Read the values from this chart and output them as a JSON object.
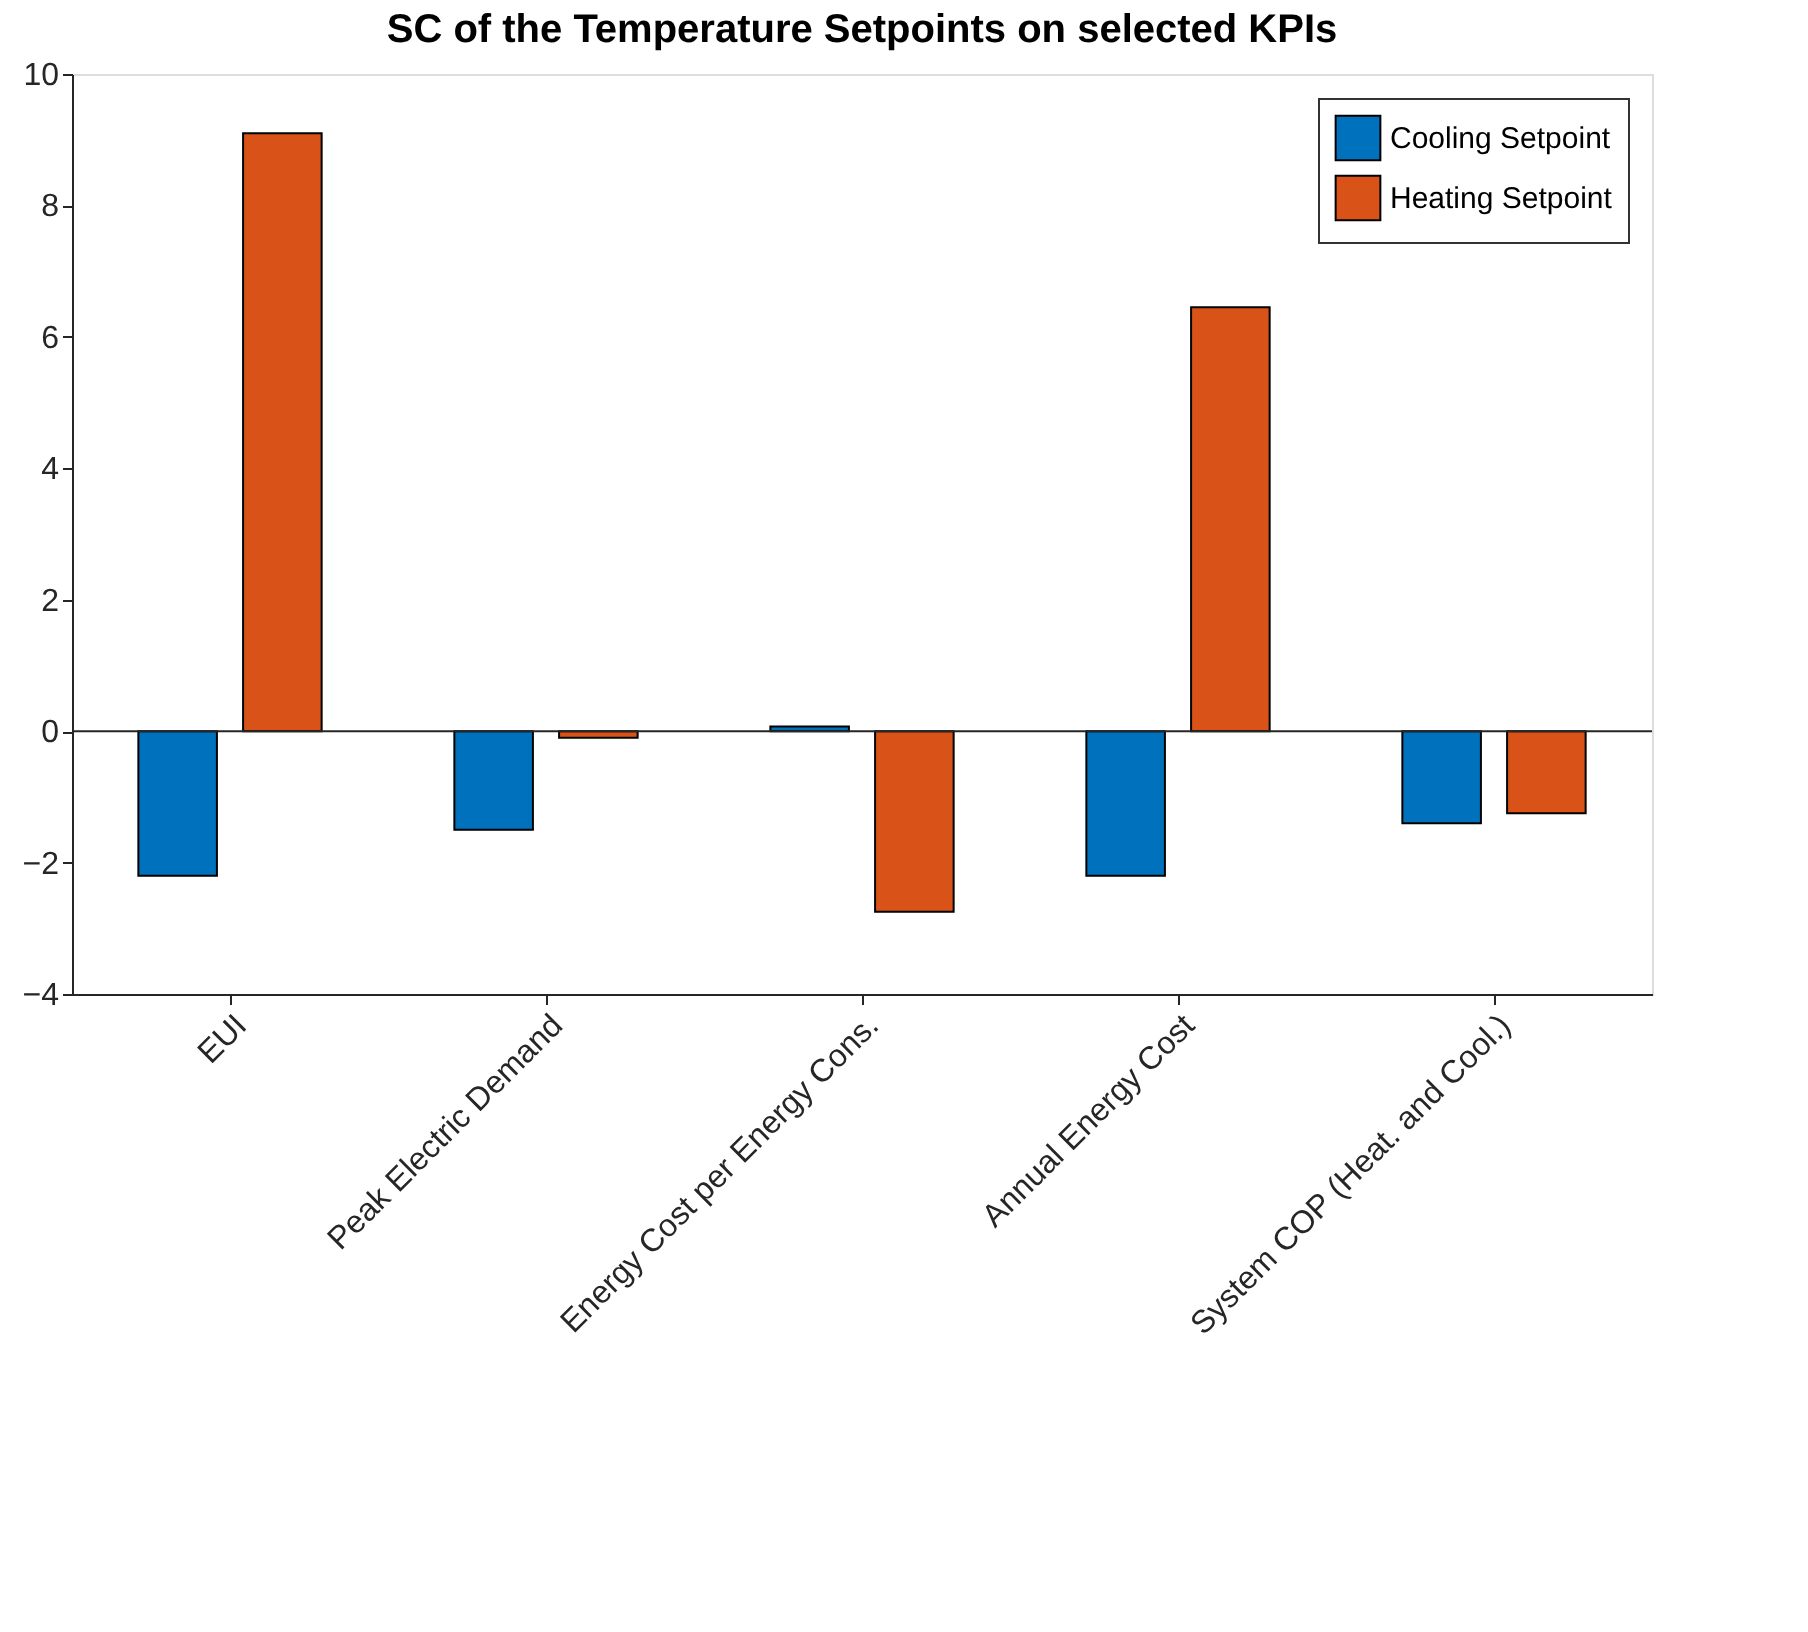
{
  "chart_data": {
    "type": "bar",
    "title": "SC of the Temperature Setpoints on selected KPIs",
    "categories": [
      "EUI",
      "Peak Electric Demand",
      "Energy Cost per Energy Cons.",
      "Annual Energy Cost",
      "System COP (Heat. and Cool.)"
    ],
    "series": [
      {
        "name": "Cooling Setpoint",
        "color": "#0072bd",
        "values": [
          -2.2,
          -1.5,
          0.07,
          -2.2,
          -1.4
        ]
      },
      {
        "name": "Heating Setpoint",
        "color": "#d95319",
        "values": [
          9.1,
          -0.1,
          -2.75,
          6.45,
          -1.25
        ]
      }
    ],
    "ylim": [
      -4,
      10
    ],
    "yticks": [
      -4,
      -2,
      0,
      2,
      4,
      6,
      8,
      10
    ],
    "grid": false,
    "legend": "top right",
    "ref_lines": [
      {
        "axis": "y",
        "value": 0
      }
    ]
  }
}
